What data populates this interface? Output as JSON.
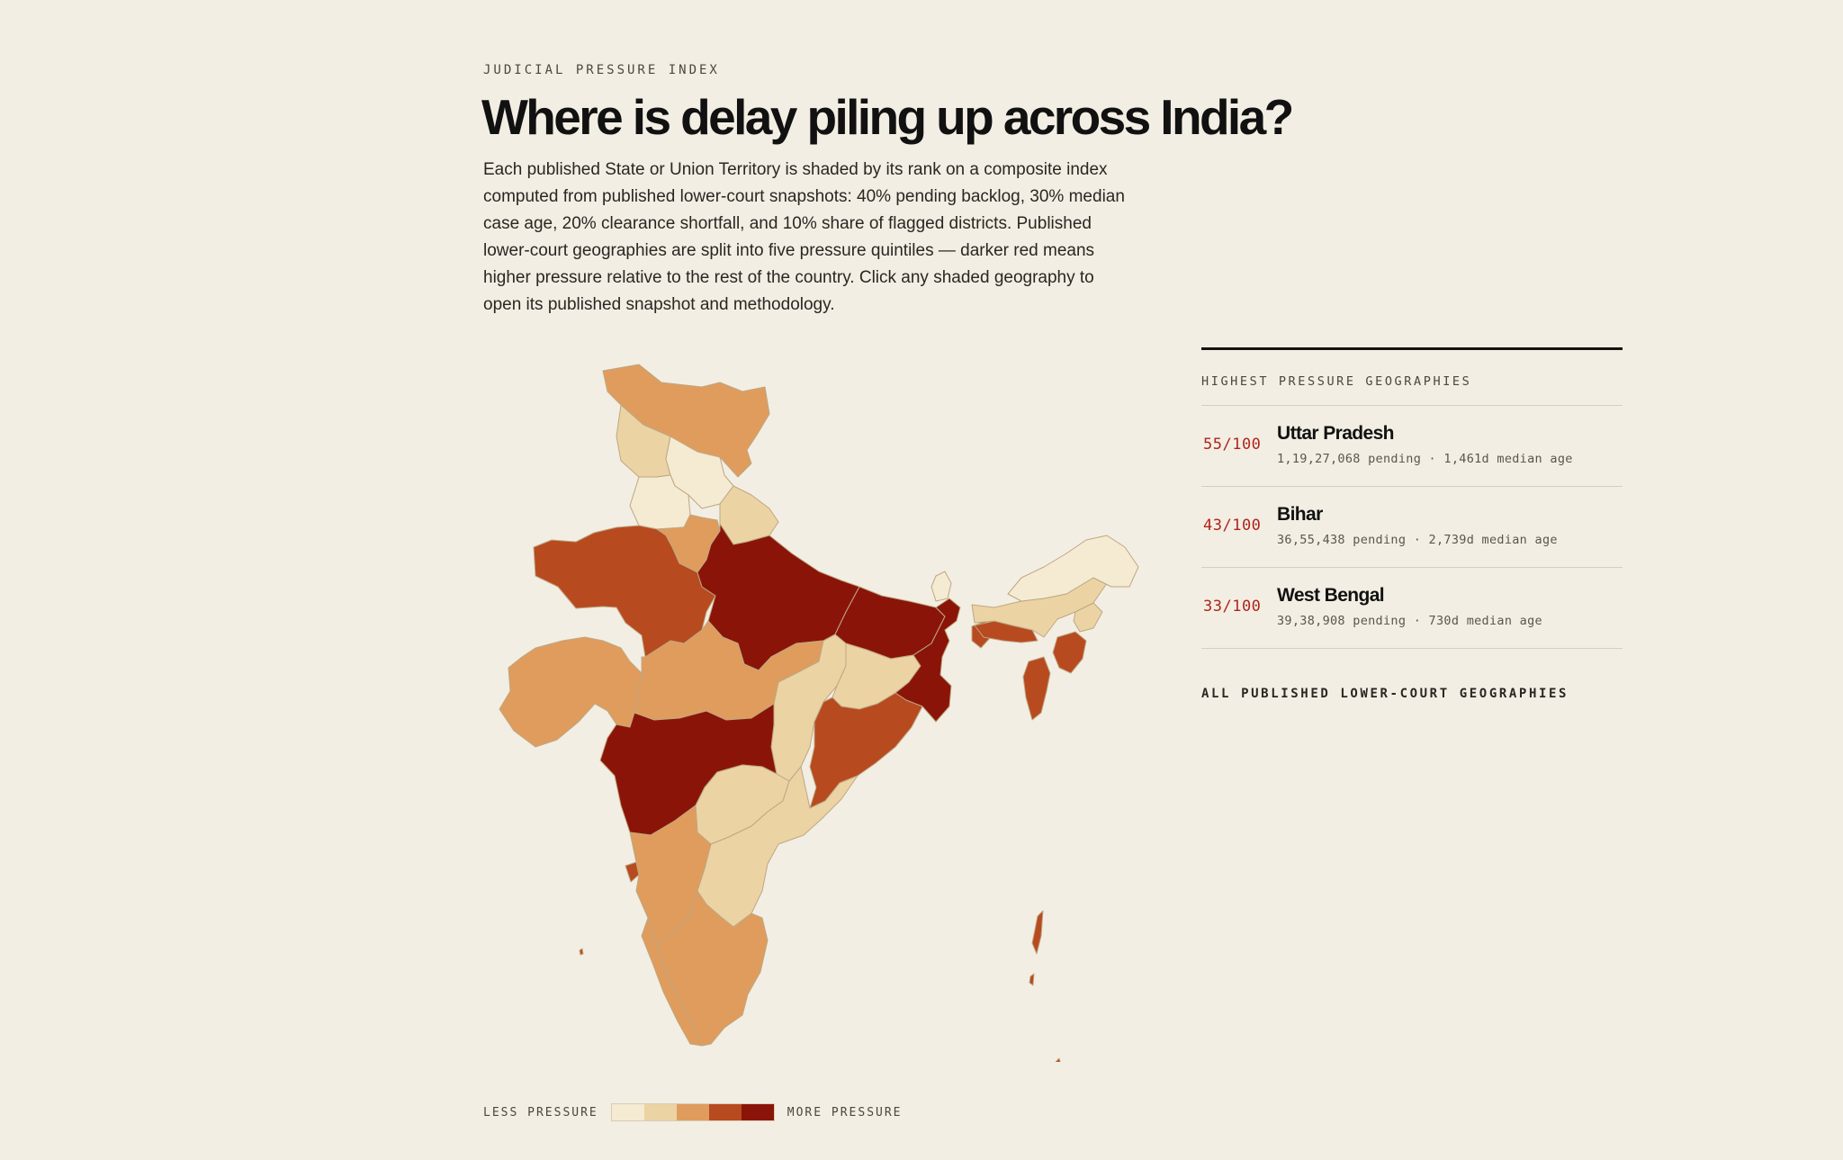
{
  "header": {
    "eyebrow": "JUDICIAL PRESSURE INDEX",
    "title": "Where is delay piling up across India?",
    "intro": "Each published State or Union Territory is shaded by its rank on a composite index computed from published lower-court snapshots: 40% pending backlog, 30% median case age, 20% clearance shortfall, and 10% share of flagged districts. Published lower-court geographies are split into five pressure quintiles — darker red means higher pressure relative to the rest of the country. Click any shaded geography to open its published snapshot and methodology."
  },
  "map": {
    "region": "India",
    "palette": [
      "#f5ead2",
      "#ebd3a4",
      "#e09c5c",
      "#b84a20",
      "#8b1408"
    ],
    "border_color": "#bda883"
  },
  "legend": {
    "low_label": "LESS PRESSURE",
    "high_label": "MORE PRESSURE"
  },
  "sidebar": {
    "heading": "HIGHEST PRESSURE GEOGRAPHIES",
    "items": [
      {
        "score": "55/100",
        "name": "Uttar Pradesh",
        "stats": "1,19,27,068 pending · 1,461d median age"
      },
      {
        "score": "43/100",
        "name": "Bihar",
        "stats": "36,55,438 pending · 2,739d median age"
      },
      {
        "score": "33/100",
        "name": "West Bengal",
        "stats": "39,38,908 pending · 730d median age"
      }
    ],
    "all_heading": "ALL PUBLISHED LOWER-COURT GEOGRAPHIES"
  }
}
